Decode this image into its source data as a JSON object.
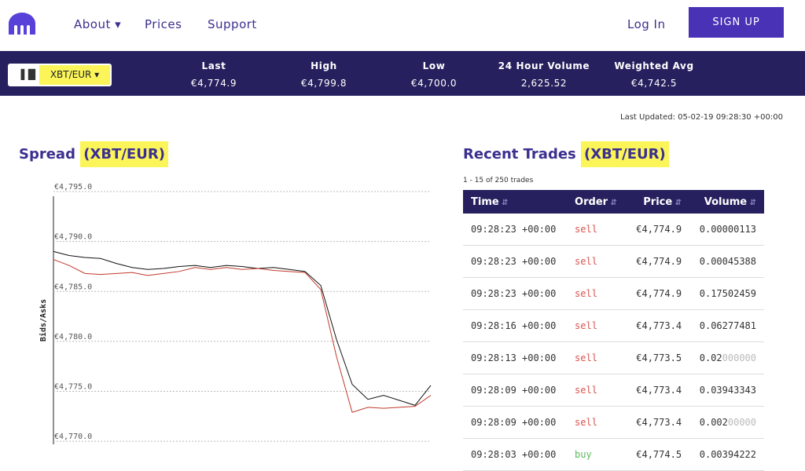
{
  "header": {
    "nav": [
      "About",
      "Prices",
      "Support"
    ],
    "login": "Log In",
    "signup": "SIGN UP"
  },
  "ticker": {
    "pair": "XBT/EUR",
    "items": [
      {
        "label": "Last",
        "value": "€4,774.9"
      },
      {
        "label": "High",
        "value": "€4,799.8"
      },
      {
        "label": "Low",
        "value": "€4,700.0"
      },
      {
        "label": "24 Hour Volume",
        "value": "2,625.52"
      },
      {
        "label": "Weighted Avg",
        "value": "€4,742.5"
      }
    ]
  },
  "last_updated": "Last Updated: 05-02-19 09:28:30 +00:00",
  "spread": {
    "title": "Spread",
    "pair": "(XBT/EUR)"
  },
  "chart_data": {
    "type": "line",
    "y_label": "Bids/Asks",
    "ylim": [
      4769.7,
      4795
    ],
    "yticks": [
      {
        "value": 4795,
        "label": "€4,795.0"
      },
      {
        "value": 4790,
        "label": "€4,790.0"
      },
      {
        "value": 4785,
        "label": "€4,785.0"
      },
      {
        "value": 4780,
        "label": "€4,780.0"
      },
      {
        "value": 4775,
        "label": "€4,775.0"
      },
      {
        "value": 4770,
        "label": "€4,770.0"
      }
    ],
    "grid": true,
    "series": [
      {
        "color": "#111111",
        "values": [
          4789.0,
          4788.6,
          4788.4,
          4788.3,
          4787.8,
          4787.4,
          4787.2,
          4787.3,
          4787.5,
          4787.6,
          4787.4,
          4787.6,
          4787.5,
          4787.3,
          4787.4,
          4787.2,
          4787.0,
          4785.6,
          4780.2,
          4775.7,
          4774.2,
          4774.6,
          4774.1,
          4773.6,
          4775.6
        ]
      },
      {
        "color": "#c0392b",
        "values": [
          4788.2,
          4787.6,
          4786.8,
          4786.7,
          4786.8,
          4786.9,
          4786.6,
          4786.8,
          4787.0,
          4787.4,
          4787.2,
          4787.4,
          4787.2,
          4787.3,
          4787.1,
          4787.0,
          4786.9,
          4785.2,
          4778.5,
          4772.9,
          4773.4,
          4773.3,
          4773.4,
          4773.5,
          4774.6
        ]
      }
    ]
  },
  "trades": {
    "title": "Recent Trades",
    "pair": "(XBT/EUR)",
    "count": "1 - 15 of 250 trades",
    "columns": [
      "Time",
      "Order",
      "Price",
      "Volume"
    ],
    "rows": [
      {
        "time": "09:28:23 +00:00",
        "order": "sell",
        "price": "€4,774.9",
        "volume": "0.00000113"
      },
      {
        "time": "09:28:23 +00:00",
        "order": "sell",
        "price": "€4,774.9",
        "volume": "0.00045388"
      },
      {
        "time": "09:28:23 +00:00",
        "order": "sell",
        "price": "€4,774.9",
        "volume": "0.17502459"
      },
      {
        "time": "09:28:16 +00:00",
        "order": "sell",
        "price": "€4,773.4",
        "volume": "0.06277481"
      },
      {
        "time": "09:28:13 +00:00",
        "order": "sell",
        "price": "€4,773.5",
        "volume": "0.02",
        "volume_pad": "000000"
      },
      {
        "time": "09:28:09 +00:00",
        "order": "sell",
        "price": "€4,773.4",
        "volume": "0.03943343"
      },
      {
        "time": "09:28:09 +00:00",
        "order": "sell",
        "price": "€4,773.4",
        "volume": "0.002",
        "volume_pad": "00000"
      },
      {
        "time": "09:28:03 +00:00",
        "order": "buy",
        "price": "€4,774.5",
        "volume": "0.00394222"
      }
    ]
  }
}
